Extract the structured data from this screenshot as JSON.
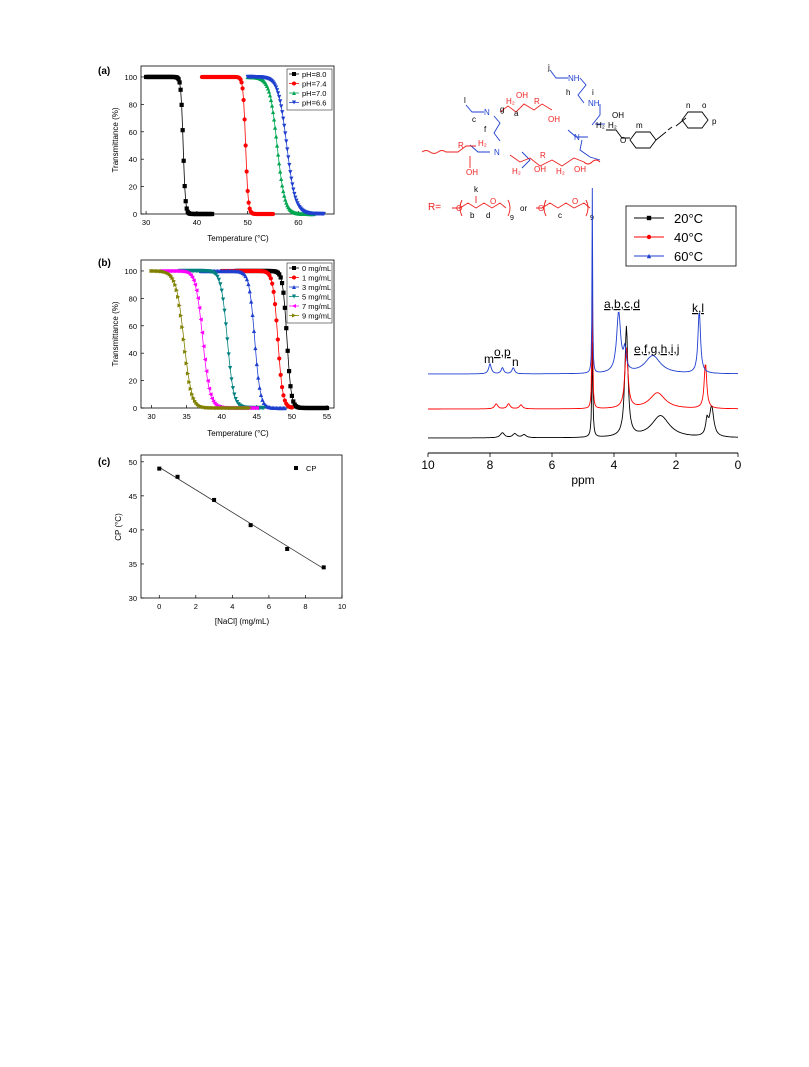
{
  "chart_data": [
    {
      "id": "a",
      "panel_label": "(a)",
      "type": "line",
      "xlabel": "Temperature (°C)",
      "ylabel": "Transmittance (%)",
      "xlim": [
        29,
        67
      ],
      "ylim": [
        0,
        108
      ],
      "xticks": [
        30,
        40,
        50,
        60
      ],
      "yticks": [
        0,
        20,
        40,
        60,
        80,
        100
      ],
      "legend_position": "top-right",
      "series": [
        {
          "name": "pH=8.0",
          "color": "#000000",
          "marker": "square",
          "x_start": 30,
          "x_end": 43,
          "mid": 37.3,
          "width": 0.22
        },
        {
          "name": "pH=7.4",
          "color": "#ff0000",
          "marker": "circle",
          "x_start": 41,
          "x_end": 55,
          "mid": 49.6,
          "width": 0.25
        },
        {
          "name": "pH=7.0",
          "color": "#00a651",
          "marker": "triangle-up",
          "x_start": 50,
          "x_end": 63,
          "mid": 55.8,
          "width": 0.75
        },
        {
          "name": "pH=6.6",
          "color": "#1f3fcf",
          "marker": "triangle-down",
          "x_start": 50,
          "x_end": 65,
          "mid": 57.7,
          "width": 0.85
        }
      ]
    },
    {
      "id": "b",
      "panel_label": "(b)",
      "type": "line",
      "xlabel": "Temperature (°C)",
      "ylabel": "Transmittance (%)",
      "xlim": [
        28.5,
        56
      ],
      "ylim": [
        0,
        108
      ],
      "xticks": [
        30,
        35,
        40,
        45,
        50,
        55
      ],
      "yticks": [
        0,
        20,
        40,
        60,
        80,
        100
      ],
      "legend_position": "top-right",
      "series": [
        {
          "name": "0 mg/mL",
          "color": "#000000",
          "marker": "square",
          "x_start": 42,
          "x_end": 55,
          "mid": 49.3,
          "width": 0.3
        },
        {
          "name": "1 mg/mL",
          "color": "#ff0000",
          "marker": "circle",
          "x_start": 40,
          "x_end": 50,
          "mid": 48.0,
          "width": 0.35
        },
        {
          "name": "3 mg/mL",
          "color": "#1f3fcf",
          "marker": "triangle-up",
          "x_start": 37,
          "x_end": 49,
          "mid": 44.7,
          "width": 0.4
        },
        {
          "name": "5 mg/mL",
          "color": "#008080",
          "marker": "triangle-down",
          "x_start": 34,
          "x_end": 46,
          "mid": 40.8,
          "width": 0.45
        },
        {
          "name": "7 mg/mL",
          "color": "#ff00ff",
          "marker": "triangle-left",
          "x_start": 31,
          "x_end": 45,
          "mid": 37.3,
          "width": 0.5
        },
        {
          "name": "9 mg/mL",
          "color": "#808000",
          "marker": "triangle-right",
          "x_start": 30,
          "x_end": 44,
          "mid": 34.6,
          "width": 0.55
        }
      ]
    },
    {
      "id": "c",
      "panel_label": "(c)",
      "type": "scatter",
      "xlabel": "[NaCl]  (mg/mL)",
      "ylabel": "CP (°C)",
      "xlim": [
        -1,
        10
      ],
      "ylim": [
        30,
        51
      ],
      "xticks": [
        0,
        2,
        4,
        6,
        8,
        10
      ],
      "yticks": [
        30,
        35,
        40,
        45,
        50
      ],
      "legend_position": "top-right",
      "series": [
        {
          "name": "CP",
          "color": "#000000",
          "marker": "square",
          "x": [
            0,
            1,
            3,
            5,
            7,
            9
          ],
          "y": [
            49.0,
            47.8,
            44.4,
            40.7,
            37.2,
            34.5
          ]
        }
      ],
      "fit_line": {
        "x": [
          0,
          9
        ],
        "y": [
          49.2,
          34.3
        ]
      }
    },
    {
      "id": "nmr",
      "type": "line",
      "xlabel": "ppm",
      "xlim": [
        10,
        0
      ],
      "xticks": [
        10,
        8,
        6,
        4,
        2,
        0
      ],
      "legend_position": "top-right",
      "series": [
        {
          "name": "20°C",
          "color": "#000000",
          "marker": "square"
        },
        {
          "name": "40°C",
          "color": "#ff0000",
          "marker": "circle"
        },
        {
          "name": "60°C",
          "color": "#1f3fcf",
          "marker": "triangle-up"
        }
      ],
      "peak_labels": [
        "m",
        "o,p",
        "n",
        "a,b,c,d",
        "e,f,g,h,i,j",
        "k,l"
      ]
    }
  ],
  "structure": {
    "r_label": "R=",
    "or_text": "or",
    "atoms": {
      "nh": "NH",
      "n": "N",
      "oh": "OH",
      "h2": "H₂",
      "o": "O",
      "r": "R",
      "letters": [
        "j",
        "h",
        "i",
        "l",
        "c",
        "f",
        "g",
        "a",
        "m",
        "n",
        "o",
        "p",
        "k",
        "b",
        "d",
        "c"
      ],
      "sub9": "9"
    }
  }
}
